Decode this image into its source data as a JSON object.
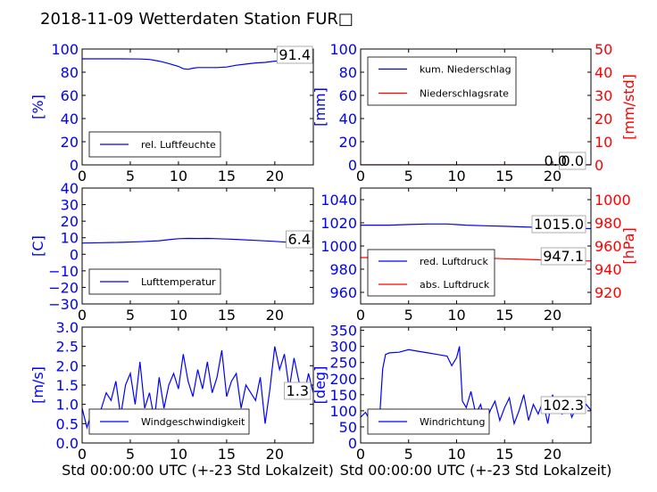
{
  "title": "2018-11-09 Wetterdaten Station FUR□",
  "colors": {
    "left_axis": "#0000ff",
    "right_axis": "#ff0000",
    "frame": "#000000",
    "light_blue": "#8888ff"
  },
  "chart_data": [
    {
      "id": "humidity",
      "type": "line",
      "xlim": [
        0,
        24
      ],
      "x_ticks": [
        "0",
        "5",
        "10",
        "15",
        "20"
      ],
      "ylim": [
        0,
        100
      ],
      "y_ticks": [
        "0",
        "20",
        "40",
        "60",
        "80",
        "100"
      ],
      "ylabel": "[%]",
      "xlabel": "",
      "legend": {
        "placement": "lower-left",
        "entries": [
          "rel. Luftfeuchte"
        ]
      },
      "current_value": "91.4",
      "series": [
        {
          "name": "rel. Luftfeuchte",
          "color": "#0000ff",
          "axis": "left",
          "x": [
            0,
            2,
            4,
            6,
            7,
            8,
            9,
            10,
            10.5,
            11,
            11.5,
            12,
            13,
            14,
            15,
            16,
            17,
            18,
            19,
            20,
            21,
            22,
            23,
            24
          ],
          "y": [
            91.5,
            91.5,
            91.5,
            91.4,
            91,
            89.5,
            87.5,
            85,
            83,
            82.5,
            83.5,
            84,
            84,
            84,
            84.5,
            86,
            87,
            88,
            88.5,
            89.5,
            90,
            90.5,
            91,
            91.4
          ]
        }
      ]
    },
    {
      "id": "precipitation",
      "type": "line",
      "xlim": [
        0,
        24
      ],
      "x_ticks": [
        "0",
        "5",
        "10",
        "15",
        "20"
      ],
      "ylim": [
        0,
        100
      ],
      "y_ticks": [
        "0",
        "20",
        "40",
        "60",
        "80",
        "100"
      ],
      "ylabel": "[mm]",
      "y2lim": [
        0,
        50
      ],
      "y2_ticks": [
        "0",
        "10",
        "20",
        "30",
        "40",
        "50"
      ],
      "y2label": "[mm/std]",
      "legend": {
        "placement": "upper-left",
        "entries": [
          "kum. Niederschlag",
          "Niederschlagsrate"
        ]
      },
      "current_value": "0.0",
      "current_value_2": "0.0",
      "series": [
        {
          "name": "kum. Niederschlag",
          "color": "#0000ff",
          "axis": "left",
          "x": [
            0,
            24
          ],
          "y": [
            0,
            0
          ]
        },
        {
          "name": "Niederschlagsrate",
          "color": "#ff0000",
          "axis": "right",
          "x": [
            0,
            24
          ],
          "y": [
            0,
            0
          ]
        }
      ]
    },
    {
      "id": "temperature",
      "type": "line",
      "xlim": [
        0,
        24
      ],
      "x_ticks": [
        "0",
        "5",
        "10",
        "15",
        "20"
      ],
      "ylim": [
        -30,
        40
      ],
      "y_ticks": [
        "−30",
        "−20",
        "−10",
        "0",
        "10",
        "20",
        "30",
        "40"
      ],
      "ylabel": "[C]",
      "legend": {
        "placement": "lower-left",
        "entries": [
          "Lufttemperatur"
        ]
      },
      "current_value": "6.4",
      "series": [
        {
          "name": "Lufttemperatur",
          "color": "#0000ff",
          "axis": "left",
          "x": [
            0,
            2,
            4,
            6,
            8,
            9,
            10,
            11,
            12,
            13,
            14,
            15,
            16,
            18,
            20,
            22,
            24
          ],
          "y": [
            6.8,
            7,
            7.2,
            7.6,
            8.2,
            8.8,
            9.4,
            9.6,
            9.5,
            9.6,
            9.4,
            9.2,
            9,
            8.4,
            7.8,
            7,
            6.4
          ]
        }
      ]
    },
    {
      "id": "pressure",
      "type": "line",
      "xlim": [
        0,
        24
      ],
      "x_ticks": [
        "0",
        "5",
        "10",
        "15",
        "20"
      ],
      "ylim": [
        950,
        1050
      ],
      "y_ticks": [
        "960",
        "980",
        "1000",
        "1020",
        "1040"
      ],
      "ylabel": "",
      "y2lim": [
        910,
        1010
      ],
      "y2_ticks": [
        "920",
        "940",
        "960",
        "980",
        "1000"
      ],
      "y2label": "[hPa]",
      "legend": {
        "placement": "lower-left",
        "entries": [
          "red. Luftdruck",
          "abs. Luftdruck"
        ]
      },
      "current_value": "1015.0",
      "current_value_2": "947.1",
      "series": [
        {
          "name": "red. Luftdruck",
          "color": "#0000ff",
          "axis": "left",
          "x": [
            0,
            3,
            5,
            7,
            9,
            11,
            13,
            15,
            17,
            19,
            21,
            24
          ],
          "y": [
            1018,
            1018,
            1018.5,
            1019,
            1019,
            1018,
            1017.5,
            1017,
            1016.5,
            1016,
            1015.5,
            1015
          ]
        },
        {
          "name": "abs. Luftdruck",
          "color": "#ff0000",
          "axis": "right",
          "x": [
            0,
            3,
            5,
            7,
            9,
            11,
            13,
            15,
            17,
            19,
            21,
            24
          ],
          "y": [
            950,
            950,
            950.5,
            951,
            951,
            950,
            949.5,
            949,
            948.5,
            948,
            947.5,
            947.1
          ]
        }
      ]
    },
    {
      "id": "wind_speed",
      "type": "line",
      "xlim": [
        0,
        24
      ],
      "x_ticks": [
        "0",
        "5",
        "10",
        "15",
        "20"
      ],
      "ylim": [
        0,
        3
      ],
      "y_ticks": [
        "0.0",
        "0.5",
        "1.0",
        "1.5",
        "2.0",
        "2.5",
        "3.0"
      ],
      "ylabel": "[m/s]",
      "xlabel": "Std 00:00:00 UTC (+-23 Std Lokalzeit)",
      "legend": {
        "placement": "lower-left",
        "entries": [
          "Windgeschwindigkeit"
        ]
      },
      "current_value": "1.3",
      "series": [
        {
          "name": "Windgeschwindigkeit",
          "color": "#0000ff",
          "axis": "left",
          "x": [
            0,
            0.5,
            1,
            1.5,
            2,
            2.5,
            3,
            3.5,
            4,
            4.5,
            5,
            5.5,
            6,
            6.5,
            7,
            7.5,
            8,
            8.5,
            9,
            9.5,
            10,
            10.5,
            11,
            11.5,
            12,
            12.5,
            13,
            13.5,
            14,
            14.5,
            15,
            15.5,
            16,
            16.5,
            17,
            17.5,
            18,
            18.5,
            19,
            19.5,
            20,
            20.5,
            21,
            21.5,
            22,
            22.5,
            23,
            23.5,
            24
          ],
          "y": [
            0.9,
            0.4,
            0.8,
            0.3,
            0.9,
            1.3,
            1.1,
            1.6,
            0.7,
            1.5,
            1.8,
            1.0,
            2.1,
            0.9,
            1.3,
            0.6,
            1.7,
            0.9,
            1.5,
            1.8,
            1.4,
            2.3,
            1.6,
            1.2,
            1.9,
            1.4,
            2.1,
            1.3,
            1.7,
            2.4,
            1.2,
            1.6,
            1.8,
            0.9,
            1.5,
            1.3,
            1.1,
            1.7,
            0.5,
            1.4,
            2.5,
            1.9,
            2.3,
            1.4,
            2.2,
            1.6,
            1.2,
            1.8,
            1.3
          ]
        }
      ]
    },
    {
      "id": "wind_direction",
      "type": "line",
      "xlim": [
        0,
        24
      ],
      "x_ticks": [
        "0",
        "5",
        "10",
        "15",
        "20"
      ],
      "ylim": [
        0,
        360
      ],
      "y_ticks": [
        "0",
        "50",
        "100",
        "150",
        "200",
        "250",
        "300",
        "350"
      ],
      "ylabel": "[deg]",
      "xlabel": "Std 00:00:00 UTC (+-23 Std Lokalzeit)",
      "legend": {
        "placement": "lower-left",
        "entries": [
          "Windrichtung"
        ]
      },
      "current_value": "102.3",
      "series": [
        {
          "name": "Windrichtung",
          "color": "#0000ff",
          "axis": "left",
          "x": [
            0,
            0.5,
            1,
            1.5,
            2,
            2.3,
            2.6,
            3,
            4,
            5,
            6,
            7,
            8,
            9,
            9.5,
            10,
            10.3,
            10.6,
            11,
            11.5,
            12,
            12.5,
            13,
            13.5,
            14,
            14.5,
            15,
            15.5,
            16,
            16.5,
            17,
            17.5,
            18,
            18.5,
            19,
            19.5,
            20,
            20.5,
            21,
            21.5,
            22,
            22.5,
            23,
            23.5,
            24
          ],
          "y": [
            80,
            95,
            70,
            100,
            90,
            230,
            275,
            280,
            282,
            290,
            285,
            280,
            275,
            270,
            240,
            265,
            300,
            130,
            110,
            160,
            90,
            120,
            60,
            100,
            130,
            70,
            110,
            140,
            60,
            100,
            150,
            70,
            120,
            90,
            130,
            60,
            150,
            100,
            90,
            140,
            80,
            110,
            95,
            120,
            102
          ]
        }
      ]
    }
  ]
}
